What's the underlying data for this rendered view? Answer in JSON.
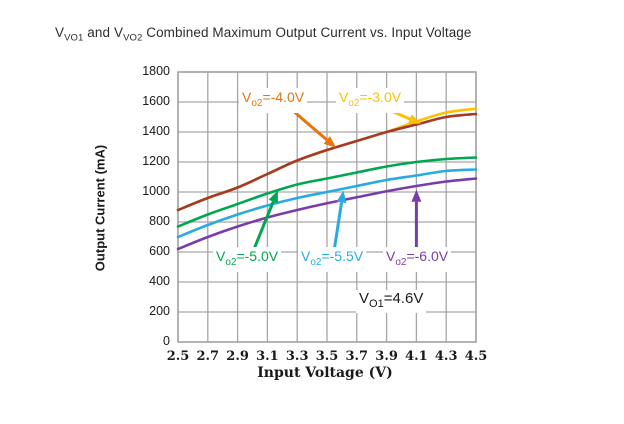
{
  "figure": {
    "title_parts": {
      "p1": "V",
      "sub1": "VO1",
      "p2": " and V",
      "sub2": "VO2",
      "p3": " Combined Maximum Output Current vs. Input Voltage"
    }
  },
  "chart_data": {
    "type": "line",
    "title": "VVO1 and VVO2 Combined Maximum Output Current vs. Input Voltage",
    "xlabel": "Input Voltage (V)",
    "ylabel": "Output Current (mA)",
    "xlim": [
      2.5,
      4.5
    ],
    "ylim": [
      0,
      1800
    ],
    "x_ticks": [
      2.5,
      2.7,
      2.9,
      3.1,
      3.3,
      3.5,
      3.7,
      3.9,
      4.1,
      4.3,
      4.5
    ],
    "y_ticks": [
      0,
      200,
      400,
      600,
      800,
      1000,
      1200,
      1400,
      1600,
      1800
    ],
    "grid": true,
    "grid_color": "#A6A6A6",
    "legend_position": "inline-annotations",
    "x": [
      2.5,
      2.7,
      2.9,
      3.1,
      3.3,
      3.5,
      3.7,
      3.9,
      4.1,
      4.3,
      4.5
    ],
    "series": [
      {
        "id": "vo2-minus-3.0V",
        "name": "Vo2=-3.0V",
        "color": "#FFC000",
        "values": [
          880,
          960,
          1030,
          1120,
          1210,
          1280,
          1340,
          1400,
          1470,
          1530,
          1555
        ]
      },
      {
        "id": "vo2-minus-5.0V",
        "name": "Vo2=-5.0V",
        "color": "#00A650",
        "values": [
          770,
          850,
          920,
          990,
          1050,
          1090,
          1130,
          1170,
          1200,
          1220,
          1230
        ]
      },
      {
        "id": "vo2-minus-5.5V",
        "name": "Vo2=-5.5V",
        "color": "#29ABE2",
        "values": [
          700,
          780,
          850,
          910,
          960,
          1000,
          1040,
          1080,
          1110,
          1140,
          1150
        ]
      },
      {
        "id": "vo2-minus-6.0V",
        "name": "Vo2=-6.0V",
        "color": "#7A3DA8",
        "values": [
          620,
          700,
          770,
          830,
          880,
          925,
          965,
          1005,
          1040,
          1070,
          1090
        ]
      },
      {
        "id": "vo2-minus-4.0V",
        "name": "Vo2=-4.0V",
        "color": "#A33B28",
        "values": [
          880,
          960,
          1030,
          1120,
          1210,
          1280,
          1340,
          1400,
          1450,
          1500,
          1520
        ]
      }
    ],
    "annotations": [
      {
        "id": "annotation-arrow-vo2-minus-4.0V",
        "color": "#E8740C",
        "from": [
          3.25,
          1560
        ],
        "to": [
          3.56,
          1295
        ]
      },
      {
        "id": "annotation-arrow-vo2-minus-3.0V",
        "color": "#FFC000",
        "from": [
          3.92,
          1545
        ],
        "to": [
          4.13,
          1455
        ]
      },
      {
        "id": "annotation-arrow-vo2-minus-5.0V",
        "color": "#00A650",
        "from": [
          3.0,
          595
        ],
        "to": [
          3.17,
          1010
        ]
      },
      {
        "id": "annotation-arrow-vo2-minus-5.5V",
        "color": "#29ABE2",
        "from": [
          3.54,
          560
        ],
        "to": [
          3.61,
          1010
        ]
      },
      {
        "id": "annotation-arrow-vo2-minus-6.0V",
        "color": "#7A3DA8",
        "from": [
          4.1,
          580
        ],
        "to": [
          4.1,
          1015
        ]
      }
    ]
  },
  "labels": {
    "vo2_40": {
      "v": "V",
      "sub": "o2",
      "rest": "=-4.0V",
      "color": "#E8740C"
    },
    "vo2_30": {
      "v": "V",
      "sub": "o2",
      "rest": "=-3.0V",
      "color": "#FFC000"
    },
    "vo2_50": {
      "v": "V",
      "sub": "o2",
      "rest": "=-5.0V",
      "color": "#00A650"
    },
    "vo2_55": {
      "v": "V",
      "sub": "o2",
      "rest": "=-5.5V",
      "color": "#29ABE2"
    },
    "vo2_60": {
      "v": "V",
      "sub": "o2",
      "rest": "=-6.0V",
      "color": "#7A3DA8"
    },
    "vo1": {
      "v": "V",
      "sub": "O1",
      "rest": "=4.6V",
      "color": "#1A1A1A"
    }
  }
}
